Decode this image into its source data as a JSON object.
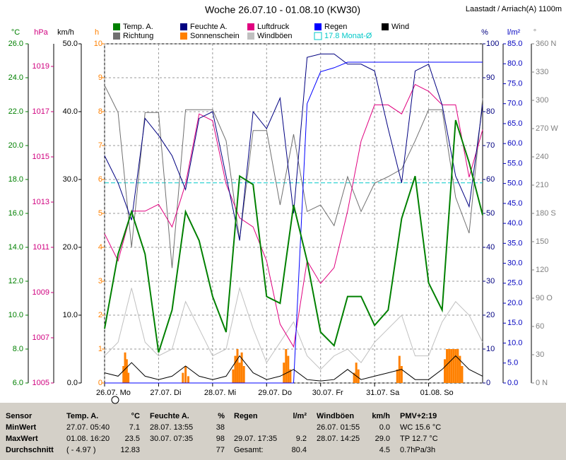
{
  "chart_data": {
    "type": "line",
    "title": "Woche 26.07.10 - 01.08.10 (KW30)",
    "location": "Laastadt / Arriach(A) 1100m",
    "xlim": [
      0,
      7
    ],
    "xticks": [
      {
        "value": 0,
        "label": "26.07.  Mo"
      },
      {
        "value": 1,
        "label": "27.07.  Di"
      },
      {
        "value": 2,
        "label": "28.07.  Mi"
      },
      {
        "value": 3,
        "label": "29.07.  Do"
      },
      {
        "value": 4,
        "label": "30.07.  Fr"
      },
      {
        "value": 5,
        "label": "31.07.  Sa"
      },
      {
        "value": 6,
        "label": "01.08.  So"
      }
    ],
    "grid": true,
    "grid_axis": 3,
    "x": [
      0,
      0.25,
      0.5,
      0.75,
      1,
      1.25,
      1.5,
      1.75,
      2,
      2.25,
      2.5,
      2.75,
      3,
      3.25,
      3.5,
      3.75,
      4,
      4.25,
      4.5,
      4.75,
      5,
      5.25,
      5.5,
      5.75,
      6,
      6.25,
      6.5,
      6.75,
      7
    ],
    "axes": [
      {
        "label": "°C",
        "color": "#008000",
        "lim": [
          6,
          26
        ],
        "ticks": [
          {
            "value": 6,
            "label": "6.0"
          },
          {
            "value": 8,
            "label": "8.0"
          },
          {
            "value": 10,
            "label": "10.0"
          },
          {
            "value": 12,
            "label": "12.0"
          },
          {
            "value": 14,
            "label": "14.0"
          },
          {
            "value": 16,
            "label": "16.0"
          },
          {
            "value": 18,
            "label": "18.0"
          },
          {
            "value": 20,
            "label": "20.0"
          },
          {
            "value": 22,
            "label": "22.0"
          },
          {
            "value": 24,
            "label": "24.0"
          },
          {
            "value": 26,
            "label": "26.0"
          }
        ]
      },
      {
        "label": "hPa",
        "color": "#d0007f",
        "lim": [
          1005,
          1020
        ],
        "ticks": [
          1005,
          1007,
          1009,
          1011,
          1013,
          1015,
          1017,
          1019
        ]
      },
      {
        "label": "km/h",
        "color": "#000000",
        "lim": [
          0,
          50
        ],
        "ticks": [
          {
            "value": 0,
            "label": "0.0"
          },
          {
            "value": 10,
            "label": "10.0"
          },
          {
            "value": 20,
            "label": "20.0"
          },
          {
            "value": 30,
            "label": "30.0"
          },
          {
            "value": 40,
            "label": "40.0"
          },
          {
            "value": 50,
            "label": "50.0"
          }
        ]
      },
      {
        "label": "h",
        "color": "#ff8000",
        "lim": [
          0,
          10
        ],
        "ticks": [
          0,
          1,
          2,
          3,
          4,
          5,
          6,
          7,
          8,
          9,
          10
        ]
      },
      {
        "label": "%",
        "color": "#000080",
        "lim": [
          0,
          100
        ],
        "ticks": [
          0,
          10,
          20,
          30,
          40,
          50,
          60,
          70,
          80,
          90,
          100
        ]
      },
      {
        "label": "l/m²",
        "color": "#0000c0",
        "lim": [
          0,
          85
        ],
        "ticks": [
          {
            "value": 0,
            "label": "0.0"
          },
          {
            "value": 5,
            "label": "5.0"
          },
          {
            "value": 10,
            "label": "10.0"
          },
          {
            "value": 15,
            "label": "15.0"
          },
          {
            "value": 20,
            "label": "20.0"
          },
          {
            "value": 25,
            "label": "25.0"
          },
          {
            "value": 30,
            "label": "30.0"
          },
          {
            "value": 35,
            "label": "35.0"
          },
          {
            "value": 40,
            "label": "40.0"
          },
          {
            "value": 45,
            "label": "45.0"
          },
          {
            "value": 50,
            "label": "50.0"
          },
          {
            "value": 55,
            "label": "55.0"
          },
          {
            "value": 60,
            "label": "60.0"
          },
          {
            "value": 65,
            "label": "65.0"
          },
          {
            "value": 70,
            "label": "70.0"
          },
          {
            "value": 75,
            "label": "75.0"
          },
          {
            "value": 80,
            "label": "80.0"
          },
          {
            "value": 85,
            "label": "85.0"
          }
        ]
      },
      {
        "label": "°",
        "color": "#808080",
        "lim": [
          0,
          360
        ],
        "ticks": [
          {
            "value": 0,
            "label": "0 N"
          },
          30,
          60,
          {
            "value": 90,
            "label": "90 O"
          },
          120,
          150,
          {
            "value": 180,
            "label": "180 S"
          },
          210,
          240,
          {
            "value": 270,
            "label": "270 W"
          },
          300,
          330,
          {
            "value": 360,
            "label": "360 N"
          }
        ]
      }
    ],
    "series": [
      {
        "name": "Temp. A.",
        "color": "#008000",
        "axis": 0,
        "values": [
          9.2,
          13.6,
          16.1,
          13.6,
          7.8,
          10.3,
          16.1,
          14.4,
          11.1,
          9,
          18.2,
          17.7,
          11.1,
          10.7,
          16.5,
          13.2,
          9,
          8.2,
          11.1,
          11.1,
          9.4,
          10.3,
          15.7,
          18.2,
          11.9,
          10.3,
          21.5,
          19,
          15.9
        ]
      },
      {
        "name": "Richtung",
        "color": "#707070",
        "axis": 6,
        "values": [
          316,
          287,
          144,
          287,
          287,
          122,
          290,
          290,
          290,
          257,
          152,
          268,
          268,
          189,
          264,
          182,
          189,
          167,
          219,
          182,
          212,
          219,
          227,
          257,
          290,
          290,
          197,
          159,
          302
        ]
      },
      {
        "name": "Feuchte A.",
        "color": "#000080",
        "axis": 4,
        "values": [
          67,
          59,
          48,
          78,
          73,
          67,
          57,
          78,
          80,
          61,
          42,
          80,
          75,
          84,
          50,
          96,
          97,
          97,
          94,
          94,
          92,
          75,
          59,
          92,
          94,
          82,
          61,
          52,
          82
        ]
      },
      {
        "name": "Sonnenschein",
        "color": "#ff8000",
        "axis": 3,
        "type": "bar",
        "x": [
          0.35,
          0.38,
          0.41,
          0.44,
          1.45,
          1.5,
          1.55,
          2.38,
          2.42,
          2.46,
          2.5,
          2.54,
          2.58,
          3.32,
          3.36,
          3.4,
          3.44,
          4.62,
          4.66,
          4.7,
          5.42,
          5.46,
          5.5,
          6.3,
          6.34,
          6.38,
          6.42,
          6.46,
          6.5,
          6.54,
          6.58,
          6.62
        ],
        "values": [
          0.5,
          0.9,
          0.7,
          0.3,
          0.3,
          0.5,
          0.2,
          0.4,
          0.8,
          1,
          0.6,
          0.9,
          0.5,
          0.6,
          1,
          0.8,
          0.4,
          0.3,
          0.6,
          0.4,
          0.4,
          0.8,
          0.5,
          0.7,
          1,
          1,
          1,
          1,
          1,
          1,
          0.8,
          0.5
        ]
      },
      {
        "name": "Luftdruck",
        "color": "#e0007f",
        "axis": 1,
        "values": [
          1011.6,
          1010.4,
          1012.6,
          1012.6,
          1012.9,
          1011.9,
          1013.8,
          1016.9,
          1016.6,
          1013.8,
          1012.3,
          1011.9,
          1010.4,
          1007.6,
          1006.6,
          1010.4,
          1009.4,
          1010.1,
          1012.6,
          1015.7,
          1017.3,
          1017.3,
          1016.9,
          1018.2,
          1017.9,
          1017.3,
          1017.3,
          1014.1,
          1016.2
        ]
      },
      {
        "name": "Windböen",
        "color": "#c0c0c0",
        "axis": 2,
        "values": [
          4,
          6,
          14,
          6,
          4,
          5,
          12,
          8,
          4,
          5,
          14,
          8,
          3,
          6,
          9,
          4,
          2,
          4,
          5,
          3,
          6,
          8,
          10,
          4,
          4,
          9,
          12,
          10,
          6
        ]
      },
      {
        "name": "Regen",
        "color": "#0000ff",
        "axis": 5,
        "values": [
          0,
          0,
          0,
          0,
          0,
          0,
          0,
          0,
          0,
          0,
          0,
          0,
          0,
          0,
          0,
          70,
          78,
          79,
          80.4,
          80.4,
          80.4,
          80.4,
          80.4,
          80.4,
          80.4,
          80.4,
          80.4,
          80.4,
          80.4
        ]
      },
      {
        "name": "Wind",
        "color": "#000000",
        "axis": 2,
        "values": [
          1.5,
          1,
          3,
          1,
          0.5,
          1,
          2.5,
          1,
          0.5,
          1,
          4,
          1.5,
          0.5,
          1,
          2,
          0.5,
          0.3,
          0.5,
          2,
          0.5,
          1,
          1.5,
          2,
          0.5,
          0.5,
          2,
          4,
          2,
          1
        ]
      }
    ],
    "reference_line": {
      "name": "17.8 Monat-Ø",
      "value": 17.8,
      "axis": 0,
      "color": "#00c8c8"
    }
  },
  "table": {
    "header": [
      "Sensor",
      "Temp. A.",
      "°C",
      "Feuchte A.",
      "%",
      "Regen",
      "l/m²",
      "Windböen",
      "km/h",
      "PMV+2:19"
    ],
    "rows": [
      [
        "MinWert",
        "27.07.  05:40",
        "7.1",
        "28.07.  13:55",
        "38",
        "",
        "",
        "26.07.  01:55",
        "0.0",
        "WC 15.6 °C"
      ],
      [
        "MaxWert",
        "01.08.  16:20",
        "23.5",
        "30.07.  07:35",
        "98",
        "29.07.  17:35",
        "9.2",
        "28.07.  14:25",
        "29.0",
        "TP 12.7 °C"
      ],
      [
        "Durchschnitt",
        "( - 4.97 )",
        "12.83",
        "",
        "77",
        "Gesamt:",
        "80.4",
        "",
        "4.5",
        "0.7hPa/3h"
      ]
    ]
  }
}
